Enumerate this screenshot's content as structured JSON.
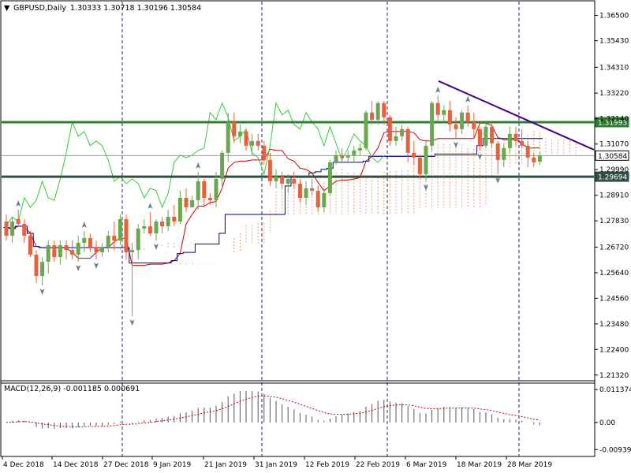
{
  "header": {
    "symbol": "GBPUSD,Daily",
    "ohlc": "1.30333 1.30718 1.30196 1.30584"
  },
  "macd": {
    "label": "MACD(12,26,9) -0.001185 0.000691",
    "ticks": [
      "0.011374",
      "0.00",
      "-0.00939"
    ],
    "tick_values": [
      0.011374,
      0.0,
      -0.00939
    ]
  },
  "price_axis": {
    "ticks": [
      "1.36500",
      "1.35430",
      "1.34310",
      "1.33220",
      "1.32140",
      "1.31070",
      "1.29990",
      "1.28910",
      "1.27830",
      "1.26720",
      "1.25640",
      "1.24560",
      "1.23480",
      "1.22400",
      "1.21320"
    ],
    "tick_values": [
      1.365,
      1.3543,
      1.3431,
      1.3322,
      1.3214,
      1.3107,
      1.2999,
      1.2891,
      1.2783,
      1.2672,
      1.2564,
      1.2456,
      1.2348,
      1.224,
      1.2132
    ],
    "ylim": [
      1.2108,
      1.3705
    ]
  },
  "time_axis": {
    "labels": [
      "4 Dec 2018",
      "14 Dec 2018",
      "27 Dec 2018",
      "9 Jan 2019",
      "21 Jan 2019",
      "31 Jan 2019",
      "12 Feb 2019",
      "22 Feb 2019",
      "6 Mar 2019",
      "18 Mar 2019",
      "28 Mar 2019"
    ]
  },
  "levels": [
    {
      "name": "resistance",
      "value": 1.31993,
      "label": "1.31993",
      "color": "#2e7d32"
    },
    {
      "name": "current",
      "value": 1.30584,
      "label": "1.30584",
      "color": "#000000"
    },
    {
      "name": "support",
      "value": 1.29694,
      "label": "1.29694",
      "color": "#2e7d32"
    }
  ],
  "colors": {
    "bull": "#6aa84f",
    "bear": "#e8603c",
    "tenkan": "#cc0000",
    "kijun": "#00008b",
    "chikou": "#33cc33",
    "trendline": "#4b0082",
    "grid_vlines": "#1a237e",
    "cloud": "#e8a07a"
  },
  "chart_data": {
    "type": "candlestick",
    "series": [
      {
        "name": "GBPUSD,Daily",
        "ohlc": [
          [
            1.278,
            1.281,
            1.27,
            1.272
          ],
          [
            1.272,
            1.28,
            1.269,
            1.278
          ],
          [
            1.279,
            1.283,
            1.276,
            1.277
          ],
          [
            1.277,
            1.279,
            1.269,
            1.272
          ],
          [
            1.272,
            1.274,
            1.263,
            1.264
          ],
          [
            1.264,
            1.266,
            1.252,
            1.255
          ],
          [
            1.255,
            1.263,
            1.251,
            1.261
          ],
          [
            1.261,
            1.27,
            1.256,
            1.268
          ],
          [
            1.268,
            1.27,
            1.261,
            1.263
          ],
          [
            1.263,
            1.27,
            1.26,
            1.268
          ],
          [
            1.268,
            1.27,
            1.262,
            1.266
          ],
          [
            1.266,
            1.27,
            1.262,
            1.264
          ],
          [
            1.264,
            1.272,
            1.261,
            1.269
          ],
          [
            1.269,
            1.274,
            1.265,
            1.271
          ],
          [
            1.271,
            1.273,
            1.265,
            1.267
          ],
          [
            1.267,
            1.27,
            1.262,
            1.265
          ],
          [
            1.265,
            1.269,
            1.263,
            1.267
          ],
          [
            1.267,
            1.274,
            1.265,
            1.272
          ],
          [
            1.272,
            1.278,
            1.266,
            1.27
          ],
          [
            1.27,
            1.281,
            1.268,
            1.279
          ],
          [
            1.279,
            1.281,
            1.262,
            1.265
          ],
          [
            1.265,
            1.269,
            1.238,
            1.266
          ],
          [
            1.266,
            1.277,
            1.262,
            1.275
          ],
          [
            1.275,
            1.279,
            1.273,
            1.276
          ],
          [
            1.276,
            1.282,
            1.272,
            1.273
          ],
          [
            1.273,
            1.279,
            1.27,
            1.278
          ],
          [
            1.278,
            1.28,
            1.273,
            1.276
          ],
          [
            1.276,
            1.283,
            1.274,
            1.28
          ],
          [
            1.28,
            1.285,
            1.276,
            1.278
          ],
          [
            1.278,
            1.291,
            1.277,
            1.288
          ],
          [
            1.288,
            1.292,
            1.282,
            1.284
          ],
          [
            1.284,
            1.289,
            1.284,
            1.287
          ],
          [
            1.287,
            1.299,
            1.283,
            1.295
          ],
          [
            1.295,
            1.296,
            1.284,
            1.288
          ],
          [
            1.288,
            1.29,
            1.285,
            1.287
          ],
          [
            1.287,
            1.299,
            1.284,
            1.296
          ],
          [
            1.296,
            1.308,
            1.293,
            1.307
          ],
          [
            1.307,
            1.324,
            1.303,
            1.32
          ],
          [
            1.32,
            1.324,
            1.311,
            1.314
          ],
          [
            1.314,
            1.319,
            1.311,
            1.316
          ],
          [
            1.316,
            1.317,
            1.308,
            1.31
          ],
          [
            1.31,
            1.315,
            1.306,
            1.312
          ],
          [
            1.312,
            1.315,
            1.308,
            1.31
          ],
          [
            1.31,
            1.312,
            1.302,
            1.304
          ],
          [
            1.304,
            1.307,
            1.293,
            1.295
          ],
          [
            1.295,
            1.3,
            1.292,
            1.297
          ],
          [
            1.297,
            1.299,
            1.292,
            1.294
          ],
          [
            1.294,
            1.298,
            1.29,
            1.296
          ],
          [
            1.296,
            1.299,
            1.292,
            1.294
          ],
          [
            1.294,
            1.296,
            1.286,
            1.288
          ],
          [
            1.288,
            1.295,
            1.285,
            1.292
          ],
          [
            1.292,
            1.296,
            1.289,
            1.291
          ],
          [
            1.291,
            1.293,
            1.282,
            1.284
          ],
          [
            1.284,
            1.292,
            1.282,
            1.29
          ],
          [
            1.29,
            1.304,
            1.289,
            1.303
          ],
          [
            1.303,
            1.308,
            1.302,
            1.306
          ],
          [
            1.306,
            1.309,
            1.303,
            1.305
          ],
          [
            1.305,
            1.308,
            1.303,
            1.306
          ],
          [
            1.306,
            1.31,
            1.303,
            1.308
          ],
          [
            1.308,
            1.311,
            1.306,
            1.309
          ],
          [
            1.309,
            1.325,
            1.308,
            1.324
          ],
          [
            1.324,
            1.329,
            1.319,
            1.321
          ],
          [
            1.321,
            1.329,
            1.319,
            1.328
          ],
          [
            1.328,
            1.329,
            1.319,
            1.322
          ],
          [
            1.322,
            1.323,
            1.31,
            1.312
          ],
          [
            1.312,
            1.318,
            1.31,
            1.314
          ],
          [
            1.314,
            1.319,
            1.312,
            1.317
          ],
          [
            1.317,
            1.318,
            1.303,
            1.307
          ],
          [
            1.307,
            1.312,
            1.302,
            1.305
          ],
          [
            1.305,
            1.306,
            1.296,
            1.298
          ],
          [
            1.298,
            1.312,
            1.295,
            1.31
          ],
          [
            1.31,
            1.329,
            1.308,
            1.328
          ],
          [
            1.328,
            1.331,
            1.32,
            1.323
          ],
          [
            1.323,
            1.327,
            1.32,
            1.325
          ],
          [
            1.325,
            1.329,
            1.316,
            1.319
          ],
          [
            1.319,
            1.322,
            1.313,
            1.317
          ],
          [
            1.317,
            1.325,
            1.315,
            1.324
          ],
          [
            1.324,
            1.327,
            1.318,
            1.32
          ],
          [
            1.32,
            1.324,
            1.313,
            1.317
          ],
          [
            1.317,
            1.318,
            1.308,
            1.31
          ],
          [
            1.31,
            1.32,
            1.309,
            1.318
          ],
          [
            1.318,
            1.32,
            1.309,
            1.311
          ],
          [
            1.311,
            1.312,
            1.298,
            1.304
          ],
          [
            1.304,
            1.311,
            1.301,
            1.309
          ],
          [
            1.309,
            1.318,
            1.307,
            1.315
          ],
          [
            1.315,
            1.318,
            1.31,
            1.312
          ],
          [
            1.312,
            1.317,
            1.309,
            1.31
          ],
          [
            1.31,
            1.312,
            1.301,
            1.305
          ],
          [
            1.305,
            1.307,
            1.301,
            1.303
          ],
          [
            1.3033,
            1.30718,
            1.30196,
            1.30584
          ]
        ]
      }
    ],
    "ylim": [
      1.2108,
      1.3705
    ],
    "trendline": [
      [
        73,
        1.3373
      ],
      [
        99,
        1.3083
      ]
    ],
    "indicator": "Ichimoku with MACD(12,26,9)"
  }
}
